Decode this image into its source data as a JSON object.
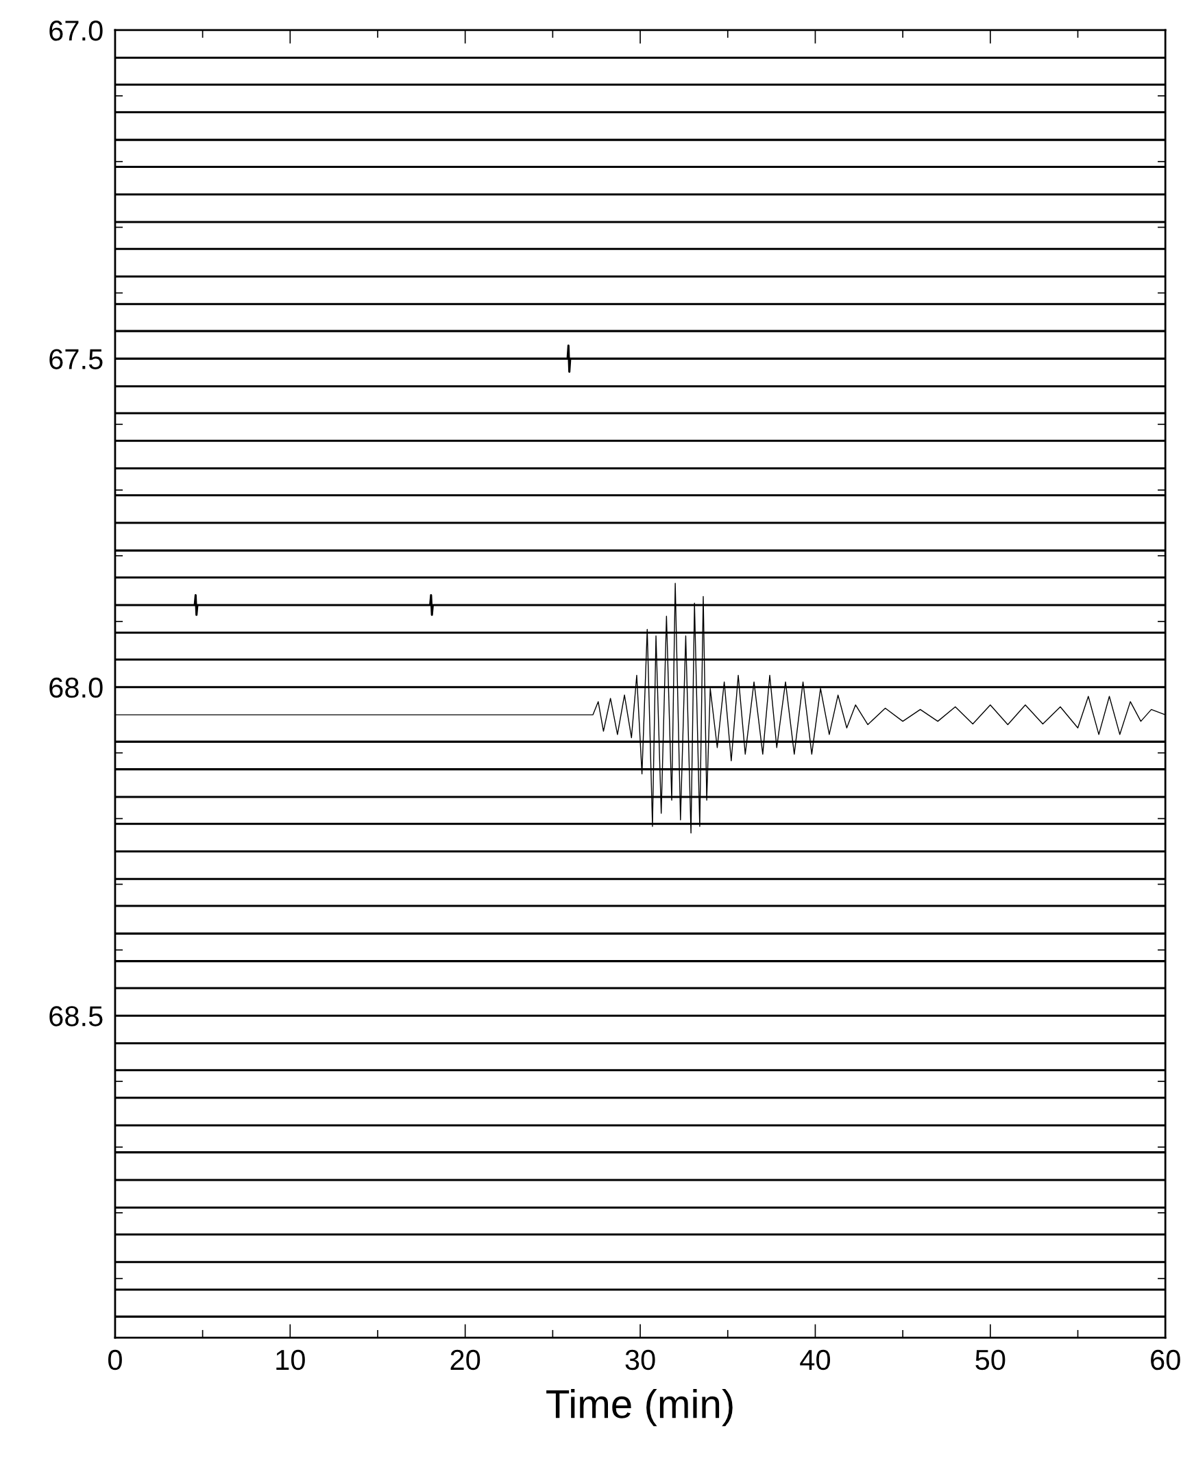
{
  "chart_data": {
    "type": "line",
    "xlabel": "Time (min)",
    "xlim": [
      0,
      60
    ],
    "ylim": [
      68.99,
      67.0
    ],
    "xticks": [
      0,
      {
        "value": 5,
        "label": null
      },
      10,
      {
        "value": 15,
        "label": null
      },
      20,
      {
        "value": 25,
        "label": null
      },
      30,
      {
        "value": 35,
        "label": null
      },
      40,
      {
        "value": 45,
        "label": null
      },
      50,
      {
        "value": 55,
        "label": null
      },
      60
    ],
    "yticks": [
      {
        "value": 67.0,
        "label": "67.0"
      },
      {
        "value": 67.1,
        "label": null
      },
      {
        "value": 67.2,
        "label": null
      },
      {
        "value": 67.3,
        "label": null
      },
      {
        "value": 67.4,
        "label": null
      },
      {
        "value": 67.5,
        "label": "67.5"
      },
      {
        "value": 67.6,
        "label": null
      },
      {
        "value": 67.7,
        "label": null
      },
      {
        "value": 67.8,
        "label": null
      },
      {
        "value": 67.9,
        "label": null
      },
      {
        "value": 68.0,
        "label": "68.0"
      },
      {
        "value": 68.1,
        "label": null
      },
      {
        "value": 68.2,
        "label": null
      },
      {
        "value": 68.3,
        "label": null
      },
      {
        "value": 68.4,
        "label": null
      },
      {
        "value": 68.5,
        "label": "68.5"
      },
      {
        "value": 68.6,
        "label": null
      },
      {
        "value": 68.7,
        "label": null
      },
      {
        "value": 68.8,
        "label": null
      },
      {
        "value": 68.9,
        "label": null
      }
    ],
    "marker": "none",
    "line_style": "solid",
    "series": [
      {
        "color": "#000000",
        "x": [
          0,
          60
        ],
        "values": [
          67.042,
          67.042
        ]
      },
      {
        "color": "#000000",
        "x": [
          0,
          60
        ],
        "values": [
          67.083,
          67.083
        ]
      },
      {
        "color": "#000000",
        "x": [
          0,
          60
        ],
        "values": [
          67.125,
          67.125
        ]
      },
      {
        "color": "#000000",
        "x": [
          0,
          60
        ],
        "values": [
          67.167,
          67.167
        ]
      },
      {
        "color": "#000000",
        "x": [
          0,
          60
        ],
        "values": [
          67.208,
          67.208
        ]
      },
      {
        "color": "#000000",
        "x": [
          0,
          60
        ],
        "values": [
          67.25,
          67.25
        ]
      },
      {
        "color": "#000000",
        "x": [
          0,
          60
        ],
        "values": [
          67.292,
          67.292
        ]
      },
      {
        "color": "#000000",
        "x": [
          0,
          60
        ],
        "values": [
          67.333,
          67.333
        ]
      },
      {
        "color": "#000000",
        "x": [
          0,
          60
        ],
        "values": [
          67.375,
          67.375
        ]
      },
      {
        "color": "#000000",
        "x": [
          0,
          60
        ],
        "values": [
          67.417,
          67.417
        ]
      },
      {
        "color": "#000000",
        "x": [
          0,
          60
        ],
        "values": [
          67.458,
          67.458
        ]
      },
      {
        "color": "#000000",
        "x": [
          0,
          25.85,
          25.9,
          25.95,
          26.0,
          60
        ],
        "values": [
          67.5,
          67.5,
          67.48,
          67.52,
          67.5,
          67.5
        ]
      },
      {
        "color": "#000000",
        "x": [
          0,
          60
        ],
        "values": [
          67.542,
          67.542
        ]
      },
      {
        "color": "#000000",
        "x": [
          0,
          60
        ],
        "values": [
          67.583,
          67.583
        ]
      },
      {
        "color": "#000000",
        "x": [
          0,
          60
        ],
        "values": [
          67.625,
          67.625
        ]
      },
      {
        "color": "#000000",
        "x": [
          0,
          60
        ],
        "values": [
          67.667,
          67.667
        ]
      },
      {
        "color": "#000000",
        "x": [
          0,
          60
        ],
        "values": [
          67.708,
          67.708
        ]
      },
      {
        "color": "#000000",
        "x": [
          0,
          60
        ],
        "values": [
          67.75,
          67.75
        ]
      },
      {
        "color": "#000000",
        "x": [
          0,
          60
        ],
        "values": [
          67.792,
          67.792
        ]
      },
      {
        "color": "#000000",
        "x": [
          0,
          60
        ],
        "values": [
          67.833,
          67.833
        ]
      },
      {
        "color": "#000000",
        "x": [
          0,
          4.55,
          4.6,
          4.65,
          4.7,
          18.0,
          18.05,
          18.1,
          18.15,
          60
        ],
        "values": [
          67.875,
          67.875,
          67.86,
          67.89,
          67.875,
          67.875,
          67.86,
          67.89,
          67.875,
          67.875
        ]
      },
      {
        "color": "#000000",
        "x": [
          0,
          60
        ],
        "values": [
          67.917,
          67.917
        ]
      },
      {
        "color": "#000000",
        "x": [
          0,
          60
        ],
        "values": [
          67.958,
          67.958
        ]
      },
      {
        "color": "#000000",
        "x": [
          0,
          60
        ],
        "values": [
          68.0,
          68.0
        ]
      },
      {
        "color": "#000000",
        "x": [
          0,
          27.3,
          27.6,
          27.9,
          28.3,
          28.7,
          29.1,
          29.5,
          29.8,
          30.1,
          30.4,
          30.7,
          30.9,
          31.2,
          31.5,
          31.8,
          32.0,
          32.3,
          32.6,
          32.9,
          33.1,
          33.4,
          33.6,
          33.8,
          34.0,
          34.4,
          34.8,
          35.2,
          35.6,
          36.0,
          36.5,
          37.0,
          37.4,
          37.8,
          38.3,
          38.8,
          39.3,
          39.8,
          40.3,
          40.8,
          41.3,
          41.8,
          42.3,
          43,
          44,
          45,
          46,
          47,
          48,
          49,
          50,
          51,
          52,
          53,
          54,
          55,
          55.6,
          56.2,
          56.8,
          57.4,
          58,
          58.6,
          59.2,
          60
        ],
        "values": [
          68.042,
          68.042,
          68.022,
          68.067,
          68.017,
          68.072,
          68.012,
          68.077,
          67.982,
          68.132,
          67.912,
          68.212,
          67.922,
          68.192,
          67.892,
          68.172,
          67.842,
          68.202,
          67.922,
          68.222,
          67.872,
          68.212,
          67.862,
          68.172,
          68.002,
          68.092,
          67.992,
          68.112,
          67.982,
          68.102,
          67.992,
          68.102,
          67.982,
          68.092,
          67.992,
          68.102,
          67.992,
          68.102,
          68.002,
          68.072,
          68.012,
          68.062,
          68.027,
          68.057,
          68.032,
          68.052,
          68.034,
          68.052,
          68.03,
          68.056,
          68.027,
          68.057,
          68.027,
          68.056,
          68.03,
          68.062,
          68.014,
          68.072,
          68.014,
          68.072,
          68.022,
          68.052,
          68.034,
          68.042
        ]
      },
      {
        "color": "#000000",
        "x": [
          0,
          60
        ],
        "values": [
          68.083,
          68.083
        ]
      },
      {
        "color": "#000000",
        "x": [
          0,
          60
        ],
        "values": [
          68.125,
          68.125
        ]
      },
      {
        "color": "#000000",
        "x": [
          0,
          60
        ],
        "values": [
          68.167,
          68.167
        ]
      },
      {
        "color": "#000000",
        "x": [
          0,
          60
        ],
        "values": [
          68.208,
          68.208
        ]
      },
      {
        "color": "#000000",
        "x": [
          0,
          60
        ],
        "values": [
          68.25,
          68.25
        ]
      },
      {
        "color": "#000000",
        "x": [
          0,
          60
        ],
        "values": [
          68.292,
          68.292
        ]
      },
      {
        "color": "#000000",
        "x": [
          0,
          60
        ],
        "values": [
          68.333,
          68.333
        ]
      },
      {
        "color": "#000000",
        "x": [
          0,
          60
        ],
        "values": [
          68.375,
          68.375
        ]
      },
      {
        "color": "#000000",
        "x": [
          0,
          60
        ],
        "values": [
          68.417,
          68.417
        ]
      },
      {
        "color": "#000000",
        "x": [
          0,
          60
        ],
        "values": [
          68.458,
          68.458
        ]
      },
      {
        "color": "#000000",
        "x": [
          0,
          60
        ],
        "values": [
          68.5,
          68.5
        ]
      },
      {
        "color": "#000000",
        "x": [
          0,
          60
        ],
        "values": [
          68.542,
          68.542
        ]
      },
      {
        "color": "#000000",
        "x": [
          0,
          60
        ],
        "values": [
          68.583,
          68.583
        ]
      },
      {
        "color": "#000000",
        "x": [
          0,
          60
        ],
        "values": [
          68.625,
          68.625
        ]
      },
      {
        "color": "#000000",
        "x": [
          0,
          60
        ],
        "values": [
          68.667,
          68.667
        ]
      },
      {
        "color": "#000000",
        "x": [
          0,
          60
        ],
        "values": [
          68.708,
          68.708
        ]
      },
      {
        "color": "#000000",
        "x": [
          0,
          60
        ],
        "values": [
          68.75,
          68.75
        ]
      },
      {
        "color": "#000000",
        "x": [
          0,
          60
        ],
        "values": [
          68.792,
          68.792
        ]
      },
      {
        "color": "#000000",
        "x": [
          0,
          60
        ],
        "values": [
          68.833,
          68.833
        ]
      },
      {
        "color": "#000000",
        "x": [
          0,
          60
        ],
        "values": [
          68.875,
          68.875
        ]
      },
      {
        "color": "#000000",
        "x": [
          0,
          60
        ],
        "values": [
          68.917,
          68.917
        ]
      },
      {
        "color": "#000000",
        "x": [
          0,
          60
        ],
        "values": [
          68.958,
          68.958
        ]
      }
    ]
  }
}
